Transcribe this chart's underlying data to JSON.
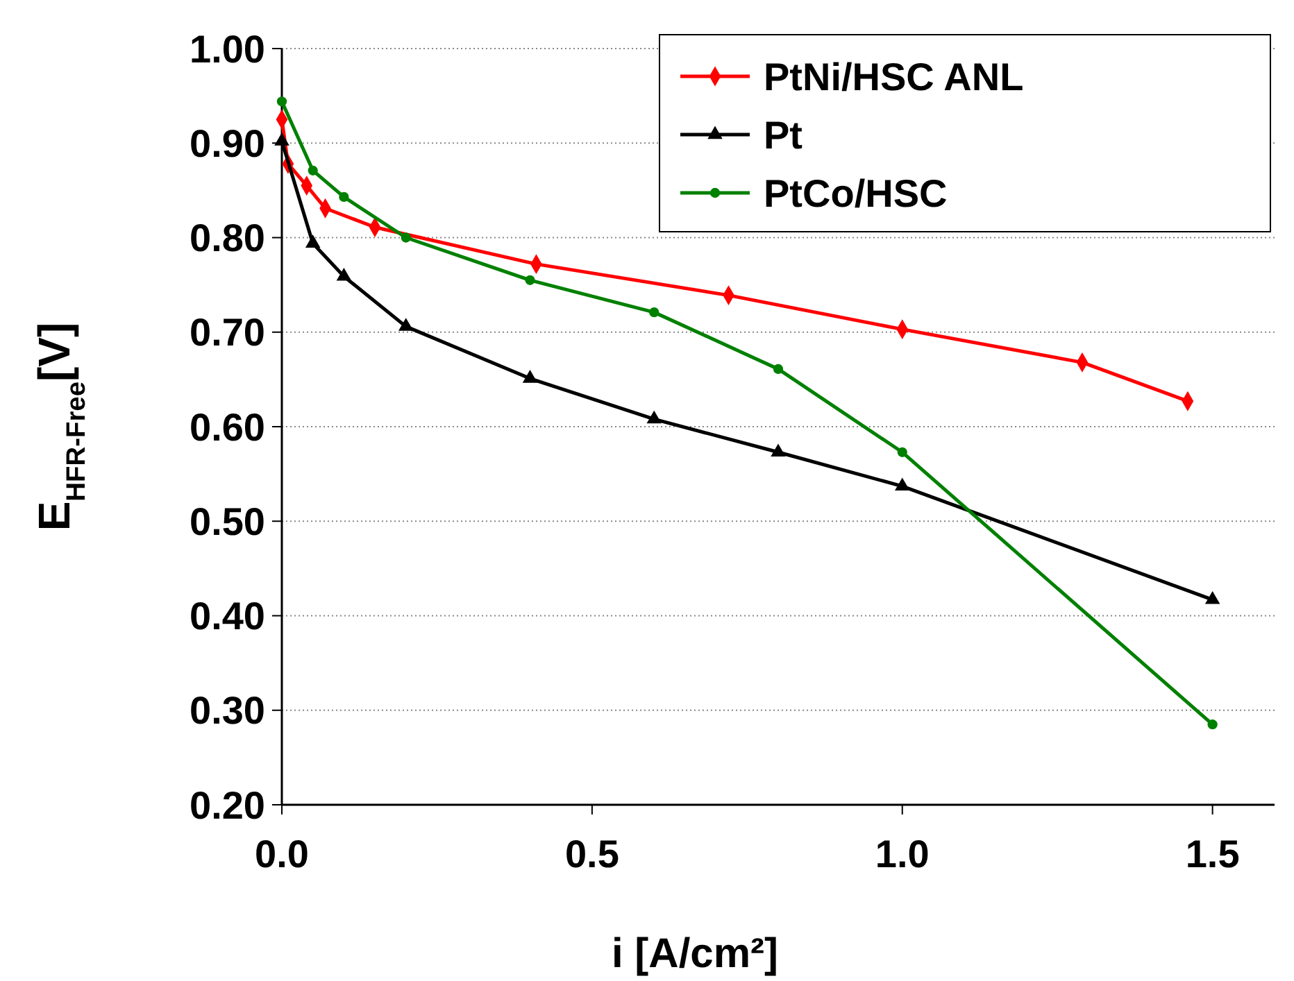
{
  "chart_data": {
    "type": "line",
    "xlabel": "i [A/cm²]",
    "ylabel": "E$_{HFR-Free}$[V]",
    "xlim": [
      0,
      1.6
    ],
    "xticks": [
      {
        "value": 0,
        "label": "0.0"
      },
      {
        "value": 0.5,
        "label": "0.5"
      },
      {
        "value": 1,
        "label": "1.0"
      },
      {
        "value": 1.5,
        "label": "1.5"
      }
    ],
    "ylim": [
      0.2,
      1.0
    ],
    "yticks": [
      {
        "value": 0.2,
        "label": "0.20"
      },
      {
        "value": 0.3,
        "label": "0.30"
      },
      {
        "value": 0.4,
        "label": "0.40"
      },
      {
        "value": 0.5,
        "label": "0.50"
      },
      {
        "value": 0.6,
        "label": "0.60"
      },
      {
        "value": 0.7,
        "label": "0.70"
      },
      {
        "value": 0.8,
        "label": "0.80"
      },
      {
        "value": 0.9,
        "label": "0.90"
      },
      {
        "value": 1.0,
        "label": "1.00"
      }
    ],
    "grid": "y",
    "legend": "top right",
    "line_style": "solid",
    "series": [
      {
        "name": "PtNi/HSC ANL",
        "color": "#ff0000",
        "marker": "diamond",
        "x": [
          0,
          0.01,
          0.04,
          0.07,
          0.15,
          0.41,
          0.72,
          1.0,
          1.29,
          1.46
        ],
        "values": [
          0.925,
          0.878,
          0.855,
          0.831,
          0.811,
          0.772,
          0.739,
          0.703,
          0.668,
          0.627
        ]
      },
      {
        "name": "Pt",
        "color": "#000000",
        "marker": "triangle",
        "x": [
          0,
          0.05,
          0.1,
          0.2,
          0.4,
          0.6,
          0.8,
          1.0,
          1.5
        ],
        "values": [
          0.902,
          0.794,
          0.759,
          0.706,
          0.651,
          0.608,
          0.573,
          0.537,
          0.417
        ]
      },
      {
        "name": "PtCo/HSC",
        "color": "#008000",
        "marker": "circle",
        "x": [
          0,
          0.05,
          0.1,
          0.2,
          0.4,
          0.6,
          0.8,
          1.0,
          1.5
        ],
        "values": [
          0.944,
          0.871,
          0.843,
          0.8,
          0.755,
          0.721,
          0.661,
          0.573,
          0.285
        ]
      }
    ]
  }
}
